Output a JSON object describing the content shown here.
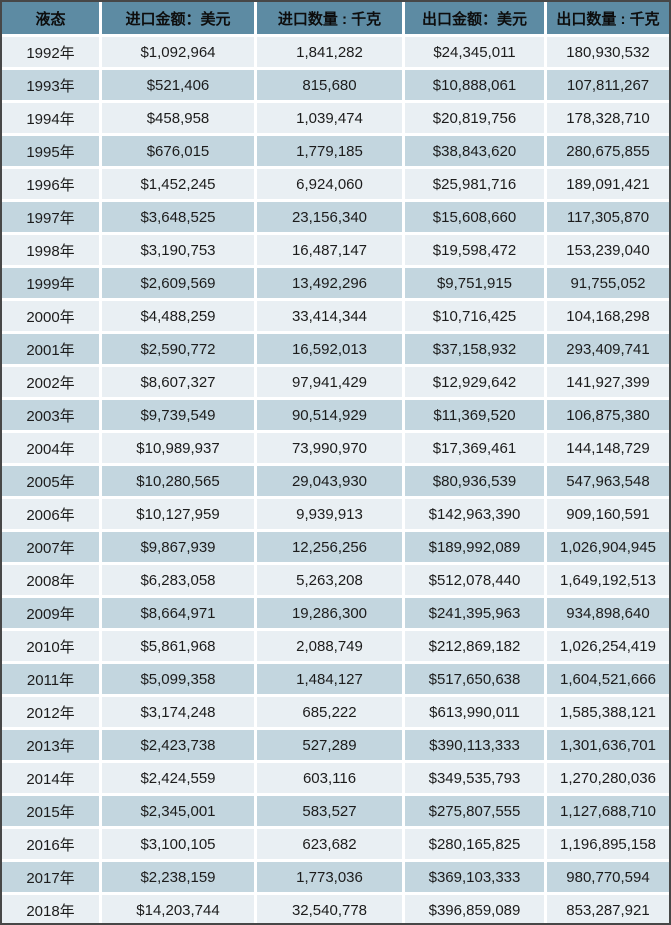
{
  "colors": {
    "header_bg": "#5d8ba3",
    "row_light": "#e9eff3",
    "row_dark": "#c3d6df",
    "separator": "#ffffff",
    "outer_border": "#474747",
    "text": "#1c1c1c"
  },
  "chart_data": {
    "type": "table",
    "title": "",
    "columns": [
      "液态",
      "进口金额：美元",
      "进口数量 : 千克",
      "出口金额：美元",
      "出口数量 : 千克"
    ],
    "rows": [
      [
        "1992年",
        "$1,092,964",
        "1,841,282",
        "$24,345,011",
        "180,930,532"
      ],
      [
        "1993年",
        "$521,406",
        "815,680",
        "$10,888,061",
        "107,811,267"
      ],
      [
        "1994年",
        "$458,958",
        "1,039,474",
        "$20,819,756",
        "178,328,710"
      ],
      [
        "1995年",
        "$676,015",
        "1,779,185",
        "$38,843,620",
        "280,675,855"
      ],
      [
        "1996年",
        "$1,452,245",
        "6,924,060",
        "$25,981,716",
        "189,091,421"
      ],
      [
        "1997年",
        "$3,648,525",
        "23,156,340",
        "$15,608,660",
        "117,305,870"
      ],
      [
        "1998年",
        "$3,190,753",
        "16,487,147",
        "$19,598,472",
        "153,239,040"
      ],
      [
        "1999年",
        "$2,609,569",
        "13,492,296",
        "$9,751,915",
        "91,755,052"
      ],
      [
        "2000年",
        "$4,488,259",
        "33,414,344",
        "$10,716,425",
        "104,168,298"
      ],
      [
        "2001年",
        "$2,590,772",
        "16,592,013",
        "$37,158,932",
        "293,409,741"
      ],
      [
        "2002年",
        "$8,607,327",
        "97,941,429",
        "$12,929,642",
        "141,927,399"
      ],
      [
        "2003年",
        "$9,739,549",
        "90,514,929",
        "$11,369,520",
        "106,875,380"
      ],
      [
        "2004年",
        "$10,989,937",
        "73,990,970",
        "$17,369,461",
        "144,148,729"
      ],
      [
        "2005年",
        "$10,280,565",
        "29,043,930",
        "$80,936,539",
        "547,963,548"
      ],
      [
        "2006年",
        "$10,127,959",
        "9,939,913",
        "$142,963,390",
        "909,160,591"
      ],
      [
        "2007年",
        "$9,867,939",
        "12,256,256",
        "$189,992,089",
        "1,026,904,945"
      ],
      [
        "2008年",
        "$6,283,058",
        "5,263,208",
        "$512,078,440",
        "1,649,192,513"
      ],
      [
        "2009年",
        "$8,664,971",
        "19,286,300",
        "$241,395,963",
        "934,898,640"
      ],
      [
        "2010年",
        "$5,861,968",
        "2,088,749",
        "$212,869,182",
        "1,026,254,419"
      ],
      [
        "2011年",
        "$5,099,358",
        "1,484,127",
        "$517,650,638",
        "1,604,521,666"
      ],
      [
        "2012年",
        "$3,174,248",
        "685,222",
        "$613,990,011",
        "1,585,388,121"
      ],
      [
        "2013年",
        "$2,423,738",
        "527,289",
        "$390,113,333",
        "1,301,636,701"
      ],
      [
        "2014年",
        "$2,424,559",
        "603,116",
        "$349,535,793",
        "1,270,280,036"
      ],
      [
        "2015年",
        "$2,345,001",
        "583,527",
        "$275,807,555",
        "1,127,688,710"
      ],
      [
        "2016年",
        "$3,100,105",
        "623,682",
        "$280,165,825",
        "1,196,895,158"
      ],
      [
        "2017年",
        "$2,238,159",
        "1,773,036",
        "$369,103,333",
        "980,770,594"
      ],
      [
        "2018年",
        "$14,203,744",
        "32,540,778",
        "$396,859,089",
        "853,287,921"
      ]
    ]
  }
}
